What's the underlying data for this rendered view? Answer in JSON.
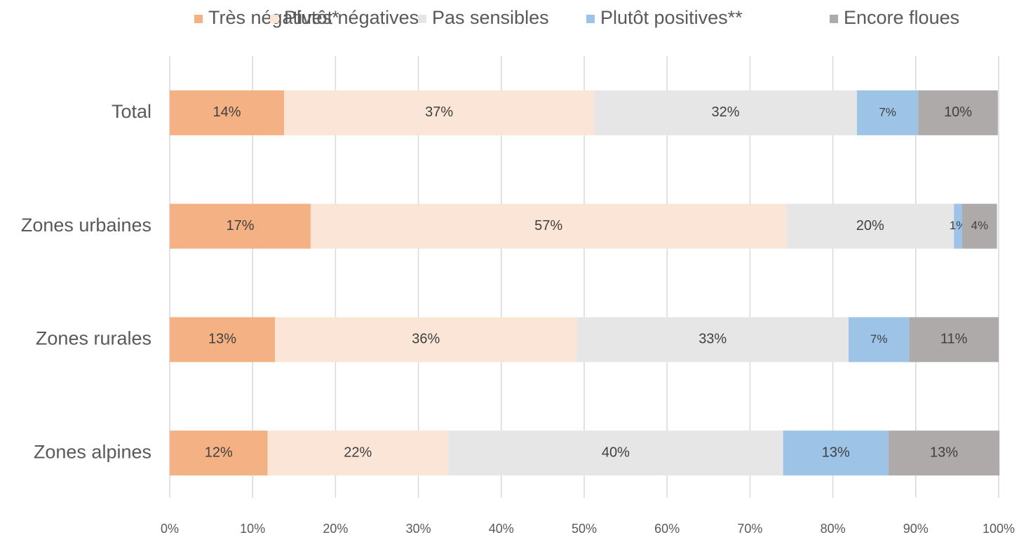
{
  "chart_data": {
    "type": "stacked-bar-horizontal",
    "categories": [
      "Total",
      "Zones urbaines",
      "Zones rurales",
      "Zones alpines"
    ],
    "series": [
      {
        "name": "Très négatives*",
        "color": "#F4B183",
        "values": [
          13.8,
          17.0,
          12.7,
          11.8
        ],
        "value_labels": [
          "14%",
          "17%",
          "13%",
          "12%"
        ]
      },
      {
        "name": "Plutôt négatives",
        "color": "#FBE5D6",
        "values": [
          37.4,
          57.4,
          36.4,
          21.8
        ],
        "value_labels": [
          "37%",
          "57%",
          "36%",
          "22%"
        ]
      },
      {
        "name": "Pas sensibles",
        "color": "#E7E6E6",
        "values": [
          31.7,
          20.2,
          32.8,
          40.4
        ],
        "value_labels": [
          "32%",
          "20%",
          "33%",
          "40%"
        ]
      },
      {
        "name": "Plutôt positives**",
        "color": "#9DC3E6",
        "values": [
          7.4,
          1.0,
          7.3,
          12.7
        ],
        "value_labels": [
          "7%",
          "1%",
          "7%",
          "13%"
        ]
      },
      {
        "name": "Encore floues",
        "color": "#AEAAAA",
        "values": [
          9.6,
          4.2,
          10.8,
          13.4
        ],
        "value_labels": [
          "10%",
          "4%",
          "11%",
          "13%"
        ]
      }
    ],
    "xlim": [
      0,
      100
    ],
    "xticks": [
      {
        "value": 0,
        "label": "0%"
      },
      {
        "value": 10,
        "label": "10%"
      },
      {
        "value": 20,
        "label": "20%"
      },
      {
        "value": 30,
        "label": "30%"
      },
      {
        "value": 40,
        "label": "40%"
      },
      {
        "value": 50,
        "label": "50%"
      },
      {
        "value": 60,
        "label": "60%"
      },
      {
        "value": 70,
        "label": "70%"
      },
      {
        "value": 80,
        "label": "80%"
      },
      {
        "value": 90,
        "label": "90%"
      },
      {
        "value": 100,
        "label": "100%"
      }
    ],
    "grid": true,
    "legend": "top"
  }
}
